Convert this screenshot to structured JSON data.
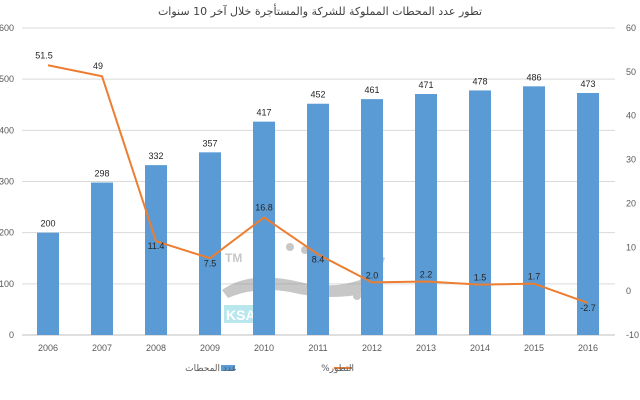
{
  "chart_data": {
    "type": "bar+line",
    "title": "تطور عدد المحطات المملوكة للشركة والمستأجرة خلال آخر 10 سنوات",
    "categories": [
      "2006",
      "2007",
      "2008",
      "2009",
      "2010",
      "2011",
      "2012",
      "2013",
      "2014",
      "2015",
      "2016"
    ],
    "series": [
      {
        "name": "عدد المحطات",
        "type": "bar",
        "axis": "left",
        "color": "#5B9BD5",
        "values": [
          200,
          298,
          332,
          357,
          417,
          452,
          461,
          471,
          478,
          486,
          473
        ]
      },
      {
        "name": "التطور%",
        "type": "line",
        "axis": "right",
        "color": "#ED7D31",
        "values": [
          51.5,
          49,
          11.4,
          7.5,
          16.8,
          8.4,
          2.0,
          2.2,
          1.5,
          1.7,
          -2.7
        ],
        "labels": [
          "51.5",
          "49",
          "11.4",
          "7.5",
          "16.8",
          "8.4",
          "2.0",
          "2.2",
          "1.5",
          "1.7",
          "-2.7"
        ]
      }
    ],
    "left_axis": {
      "min": 0,
      "max": 600,
      "step": 100,
      "ticks": [
        "0",
        "100",
        "200",
        "300",
        "400",
        "500",
        "600"
      ]
    },
    "right_axis": {
      "min": -10,
      "max": 60,
      "step": 10,
      "ticks": [
        "-10",
        "0",
        "10",
        "20",
        "30",
        "40",
        "50",
        "60"
      ]
    },
    "xlabel": "",
    "ylabel": "",
    "grid": true,
    "legend_position": "bottom"
  },
  "legend": {
    "bar_label": "عدد المحطات",
    "line_label": "التطور%"
  },
  "watermark": {
    "tm": "TM",
    "ksa": "KSA"
  },
  "colors": {
    "bar": "#5B9BD5",
    "line": "#ED7D31",
    "grid": "#D9D9D9",
    "axis_text": "#595959"
  }
}
